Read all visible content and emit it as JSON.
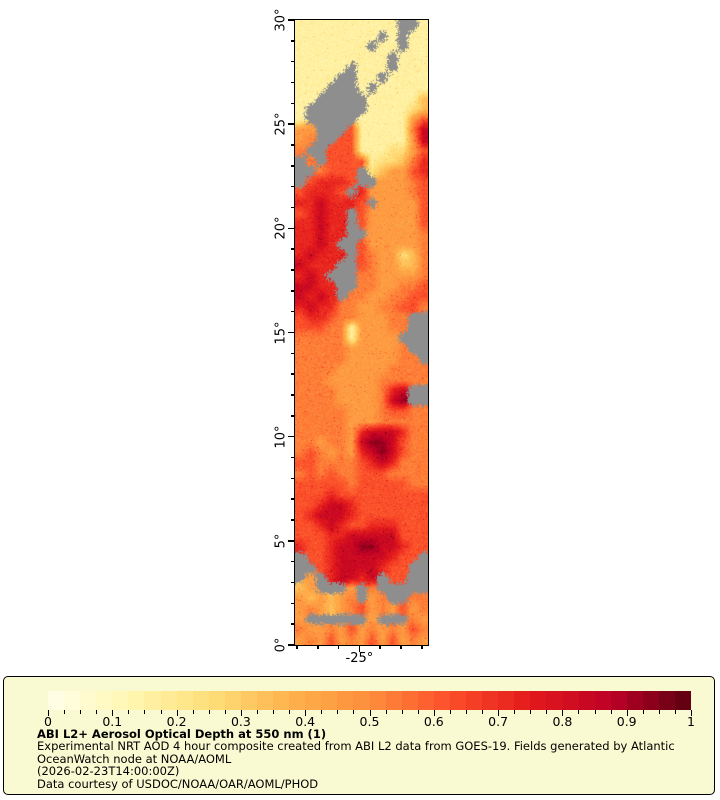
{
  "map": {
    "x_axis": {
      "tick_label": "-25°",
      "major_lon": -25,
      "lon_min": -28.1,
      "lon_max": -21.7,
      "minor_step_deg": 1
    },
    "y_axis": {
      "tick_labels": [
        "30°",
        "25°",
        "20°",
        "15°",
        "10°",
        "5°",
        "0°"
      ],
      "tick_lats": [
        30,
        25,
        20,
        15,
        10,
        5,
        0
      ],
      "lat_min": 0,
      "lat_max": 30,
      "minor_step_deg": 1
    },
    "no_data_color": "#8E8E8E"
  },
  "legend": {
    "background_color": "#FAFAD2",
    "title": "ABI L2+ Aerosol Optical Depth at 550 nm (1)",
    "lines": [
      "Experimental NRT AOD 4 hour composite created from ABI L2 data from GOES-19. Fields generated by Atlantic",
      "OceanWatch node at NOAA/AOML",
      "(2026-02-23T14:00:00Z)",
      "Data courtesy of USDOC/NOAA/OAR/AOML/PHOD"
    ]
  },
  "chart_data": {
    "type": "heatmap",
    "title": "ABI L2+ Aerosol Optical Depth at 550 nm (1)",
    "subtitle": "Experimental NRT AOD 4 hour composite created from ABI L2 data from GOES-19. Fields generated by Atlantic OceanWatch node at NOAA/AOML",
    "timestamp": "(2026-02-23T14:00:00Z)",
    "credit": "Data courtesy of USDOC/NOAA/OAR/AOML/PHOD",
    "x_range_lon_deg": [
      -28.1,
      -21.7
    ],
    "y_range_lat_deg": [
      0,
      30
    ],
    "x_tick_labels": [
      "-25°"
    ],
    "y_tick_labels": [
      "0°",
      "5°",
      "10°",
      "15°",
      "20°",
      "25°",
      "30°"
    ],
    "colorbar": {
      "min": 0,
      "max": 1,
      "tick_labels": [
        "0",
        "0.1",
        "0.2",
        "0.3",
        "0.4",
        "0.5",
        "0.6",
        "0.7",
        "0.8",
        "0.9",
        "1"
      ],
      "minor_tick_step": 0.025,
      "n_segments": 40,
      "colormap_stops": [
        [
          0.0,
          "#FFFFEB"
        ],
        [
          0.125,
          "#FFF7B2"
        ],
        [
          0.25,
          "#FEDF79"
        ],
        [
          0.375,
          "#FEB24C"
        ],
        [
          0.5,
          "#FD8D3C"
        ],
        [
          0.625,
          "#FC4E2A"
        ],
        [
          0.75,
          "#E31A1C"
        ],
        [
          0.875,
          "#BD0026"
        ],
        [
          1.0,
          "#5A0010"
        ]
      ]
    },
    "no_data_color": "#8E8E8E",
    "aod_value_encoding": {
      "x": null,
      "1": 0.16,
      "2": 0.25,
      "3": 0.34,
      "4": 0.45,
      "5": 0.53,
      "6": 0.62,
      "7": 0.72,
      "8": 0.83,
      "9": 0.93
    },
    "grid_cols": 13,
    "grid_rows": 60,
    "aod_grid_rows_north_to_south": [
      "1111111111xx1",
      "11111111x1x11",
      "1111111x11x11",
      "111111111x111",
      "11111x111x111",
      "1111xx11x1111",
      "111xxx1x11111",
      "11xxxxx111113",
      "1xxxxxx111123",
      "1xxxxx1111146",
      "44xxx61111158",
      "45xx661111148",
      "5xx6661112246",
      "x5x6666122357",
      "xx5666x234467",
      "x67776xx44456",
      "67776x7444456",
      "7787776x44446",
      "67877x6444446",
      "77877x6444446",
      "77877xx444445",
      "7787xx6444445",
      "78777x6544235",
      "8777xx6544335",
      "787xxx5544445",
      "8877xx5544556",
      "8787x55445566",
      "7877554455665",
      "67765544455xx",
      "66655144455xx",
      "5555514444xxx",
      "55555444445xx",
      "555554444455x",
      "5555444445555",
      "5554444455555",
      "55554444578xx",
      "55554444589xx",
      "5555544456655",
      "5555544455555",
      "5555547888755",
      "5545548998655",
      "5654547898655",
      "6655556787555",
      "5656556665555",
      "6666656666655",
      "6667666666666",
      "6678876666666",
      "6788876666666",
      "6678766777666",
      "6667788888666",
      "7667889988766",
      "x66788888766x",
      "xx678888766xx",
      "x4x78878x66xx",
      "34xxx4x5xxxxx",
      "434345x45xx55",
      "4543456454645",
      "4xxxxxx4xxx54",
      "5445464545465",
      "4546454646454"
    ]
  }
}
